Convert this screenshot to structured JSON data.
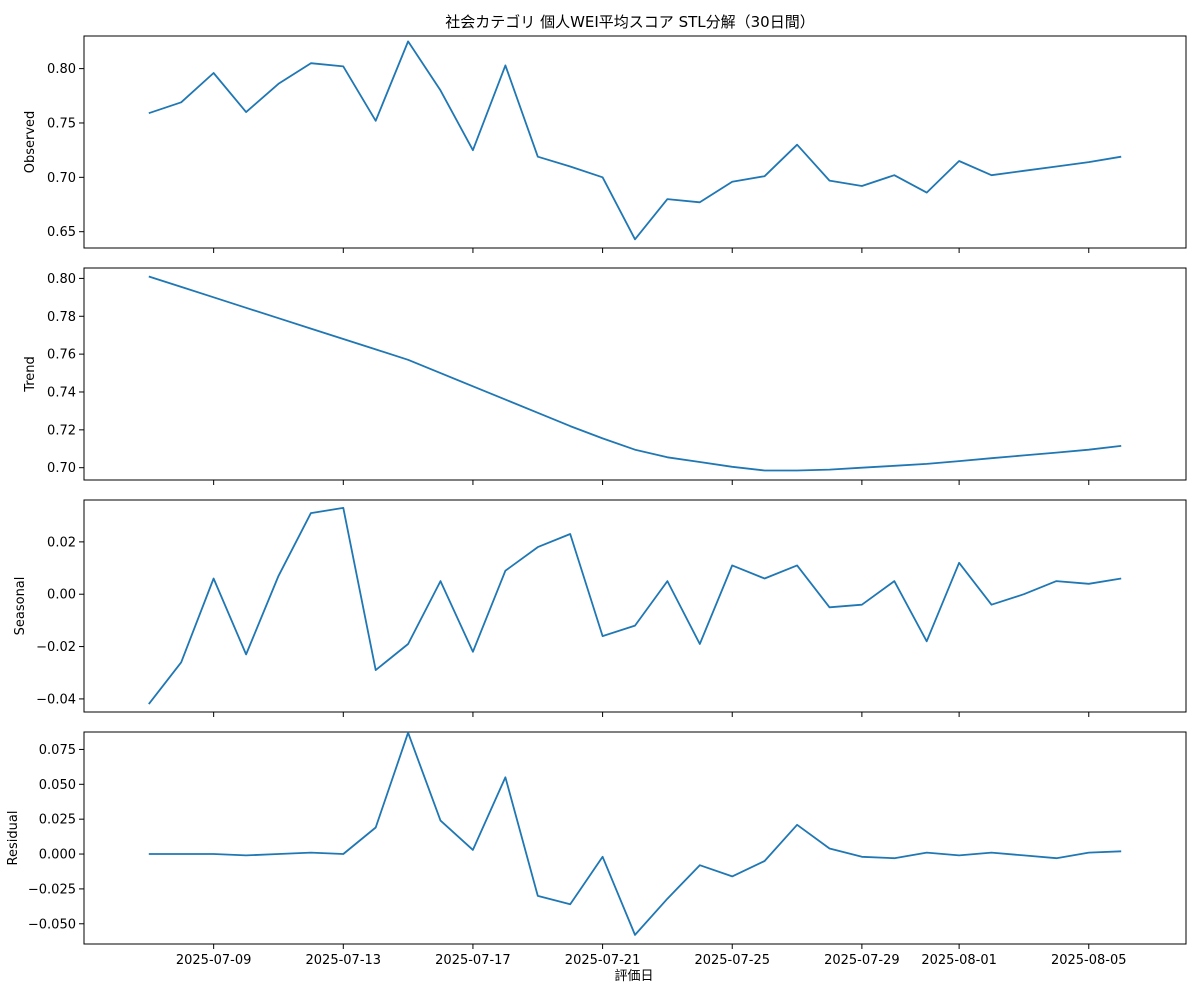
{
  "chart_data": {
    "type": "line",
    "title": "社会カテゴリ 個人WEI平均スコア STL分解（30日間）",
    "xlabel": "評価日",
    "x": [
      "2025-07-07",
      "2025-07-08",
      "2025-07-09",
      "2025-07-10",
      "2025-07-11",
      "2025-07-12",
      "2025-07-13",
      "2025-07-14",
      "2025-07-15",
      "2025-07-16",
      "2025-07-17",
      "2025-07-18",
      "2025-07-19",
      "2025-07-20",
      "2025-07-21",
      "2025-07-22",
      "2025-07-23",
      "2025-07-24",
      "2025-07-25",
      "2025-07-26",
      "2025-07-27",
      "2025-07-28",
      "2025-07-29",
      "2025-07-30",
      "2025-07-31",
      "2025-08-01",
      "2025-08-02",
      "2025-08-03",
      "2025-08-04",
      "2025-08-05",
      "2025-08-06"
    ],
    "xticks": [
      "2025-07-09",
      "2025-07-13",
      "2025-07-17",
      "2025-07-21",
      "2025-07-25",
      "2025-07-29",
      "2025-08-01",
      "2025-08-05"
    ],
    "color": "#1f77b4",
    "panels": [
      {
        "ylabel": "Observed",
        "ylim": [
          0.635,
          0.83
        ],
        "yticks": [
          "0.65",
          "0.70",
          "0.75",
          "0.80"
        ],
        "values": [
          0.759,
          0.769,
          0.796,
          0.76,
          0.786,
          0.805,
          0.802,
          0.752,
          0.825,
          0.78,
          0.725,
          0.803,
          0.719,
          0.71,
          0.7,
          0.643,
          0.68,
          0.677,
          0.696,
          0.701,
          0.73,
          0.697,
          0.692,
          0.702,
          0.686,
          0.715,
          0.702,
          0.706,
          0.71,
          0.714,
          0.719
        ]
      },
      {
        "ylabel": "Trend",
        "ylim": [
          0.6935,
          0.8055
        ],
        "yticks": [
          "0.70",
          "0.72",
          "0.74",
          "0.76",
          "0.78",
          "0.80"
        ],
        "values": [
          0.801,
          0.7955,
          0.79,
          0.7845,
          0.779,
          0.7735,
          0.768,
          0.7625,
          0.757,
          0.75,
          0.743,
          0.736,
          0.729,
          0.722,
          0.7155,
          0.7095,
          0.7055,
          0.703,
          0.7005,
          0.6985,
          0.6985,
          0.699,
          0.7,
          0.701,
          0.702,
          0.7035,
          0.705,
          0.7065,
          0.708,
          0.7095,
          0.7115
        ]
      },
      {
        "ylabel": "Seasonal",
        "ylim": [
          -0.045,
          0.036
        ],
        "yticks": [
          "−0.04",
          "−0.02",
          "0.00",
          "0.02"
        ],
        "values": [
          -0.042,
          -0.026,
          0.006,
          -0.023,
          0.007,
          0.031,
          0.033,
          -0.029,
          -0.019,
          0.005,
          -0.022,
          0.009,
          0.018,
          0.023,
          -0.016,
          -0.012,
          0.005,
          -0.019,
          0.011,
          0.006,
          0.011,
          -0.005,
          -0.004,
          0.005,
          -0.018,
          0.012,
          -0.004,
          0.0,
          0.005,
          0.004,
          0.006
        ]
      },
      {
        "ylabel": "Residual",
        "ylim": [
          -0.0645,
          0.0875
        ],
        "yticks": [
          "−0.050",
          "−0.025",
          "0.000",
          "0.025",
          "0.050",
          "0.075"
        ],
        "values": [
          0.0,
          0.0,
          0.0,
          -0.001,
          0.0,
          0.001,
          0.0,
          0.019,
          0.087,
          0.024,
          0.003,
          0.055,
          -0.03,
          -0.036,
          -0.002,
          -0.058,
          -0.032,
          -0.008,
          -0.016,
          -0.005,
          0.021,
          0.004,
          -0.002,
          -0.003,
          0.001,
          -0.001,
          0.001,
          -0.001,
          -0.003,
          0.001,
          0.002
        ]
      }
    ]
  }
}
